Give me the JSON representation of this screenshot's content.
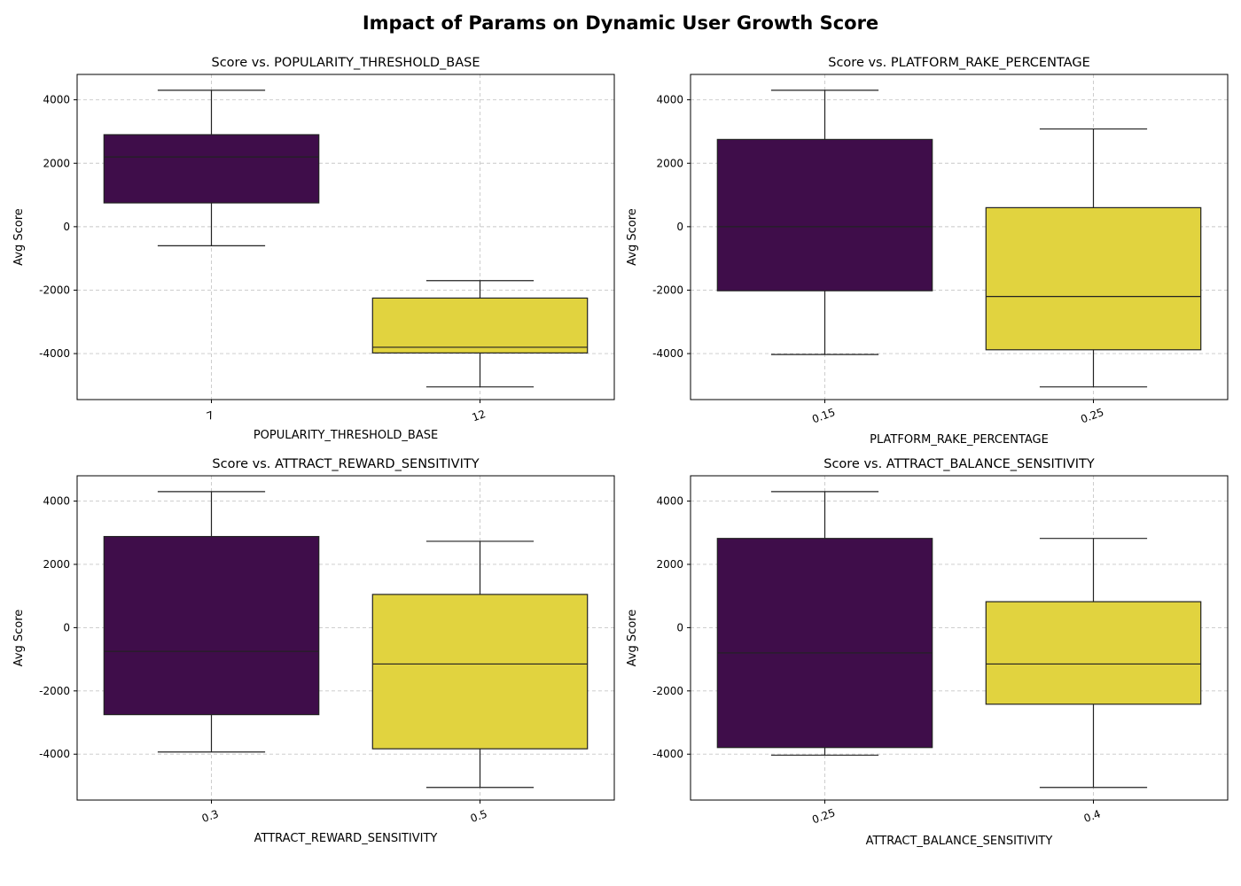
{
  "suptitle": "Impact of Params on Dynamic User Growth Score",
  "colors": {
    "group_a": "#3f0d4a",
    "group_b": "#e1d33f",
    "grid": "#c8c8c8",
    "frame": "#000000"
  },
  "chart_data": [
    {
      "type": "box",
      "title": "Score vs. POPULARITY_THRESHOLD_BASE",
      "xlabel": "POPULARITY_THRESHOLD_BASE",
      "ylabel": "Avg Score",
      "ylim": [
        -5450,
        4800
      ],
      "yticks": [
        -4000,
        -2000,
        0,
        2000,
        4000
      ],
      "grid": true,
      "categories": [
        "7",
        "12"
      ],
      "boxes": [
        {
          "category": "7",
          "whisker_low": -600,
          "q1": 750,
          "median": 2200,
          "q3": 2900,
          "whisker_high": 4300
        },
        {
          "category": "12",
          "whisker_low": -5050,
          "q1": -3980,
          "median": -3800,
          "q3": -2250,
          "whisker_high": -1700
        }
      ]
    },
    {
      "type": "box",
      "title": "Score vs. PLATFORM_RAKE_PERCENTAGE",
      "xlabel": "PLATFORM_RAKE_PERCENTAGE",
      "ylabel": "Avg Score",
      "ylim": [
        -5450,
        4800
      ],
      "yticks": [
        -4000,
        -2000,
        0,
        2000,
        4000
      ],
      "grid": true,
      "categories": [
        "0.15",
        "0.25"
      ],
      "boxes": [
        {
          "category": "0.15",
          "whisker_low": -4030,
          "q1": -2020,
          "median": 0,
          "q3": 2750,
          "whisker_high": 4300
        },
        {
          "category": "0.25",
          "whisker_low": -5050,
          "q1": -3880,
          "median": -2200,
          "q3": 600,
          "whisker_high": 3080
        }
      ]
    },
    {
      "type": "box",
      "title": "Score vs. ATTRACT_REWARD_SENSITIVITY",
      "xlabel": "ATTRACT_REWARD_SENSITIVITY",
      "ylabel": "Avg Score",
      "ylim": [
        -5450,
        4800
      ],
      "yticks": [
        -4000,
        -2000,
        0,
        2000,
        4000
      ],
      "grid": true,
      "categories": [
        "0.3",
        "0.5"
      ],
      "boxes": [
        {
          "category": "0.3",
          "whisker_low": -3930,
          "q1": -2750,
          "median": -750,
          "q3": 2880,
          "whisker_high": 4300
        },
        {
          "category": "0.5",
          "whisker_low": -5050,
          "q1": -3830,
          "median": -1150,
          "q3": 1050,
          "whisker_high": 2730
        }
      ]
    },
    {
      "type": "box",
      "title": "Score vs. ATTRACT_BALANCE_SENSITIVITY",
      "xlabel": "ATTRACT_BALANCE_SENSITIVITY",
      "ylabel": "Avg Score",
      "ylim": [
        -5450,
        4800
      ],
      "yticks": [
        -4000,
        -2000,
        0,
        2000,
        4000
      ],
      "grid": true,
      "categories": [
        "0.25",
        "0.4"
      ],
      "boxes": [
        {
          "category": "0.25",
          "whisker_low": -4030,
          "q1": -3790,
          "median": -800,
          "q3": 2820,
          "whisker_high": 4300
        },
        {
          "category": "0.4",
          "whisker_low": -5050,
          "q1": -2420,
          "median": -1150,
          "q3": 820,
          "whisker_high": 2820
        }
      ]
    }
  ]
}
